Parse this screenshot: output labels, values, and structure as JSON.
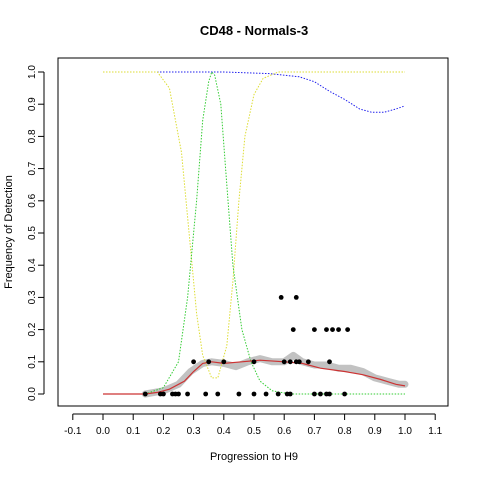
{
  "chart_data": {
    "type": "scatter",
    "title": "CD48 - Normals-3",
    "xlabel": "Progression to H9",
    "ylabel": "Frequency of Detection",
    "xlim": [
      -0.1,
      1.1
    ],
    "ylim": [
      0,
      1.0
    ],
    "x_ticks": [
      "-0.1",
      "0.0",
      "0.1",
      "0.2",
      "0.3",
      "0.4",
      "0.5",
      "0.6",
      "0.7",
      "0.8",
      "0.9",
      "1.0",
      "1.1"
    ],
    "y_ticks": [
      "0.0",
      "0.1",
      "0.2",
      "0.3",
      "0.4",
      "0.5",
      "0.6",
      "0.7",
      "0.8",
      "0.9",
      "1.0"
    ],
    "grid": false,
    "legend": "none",
    "series": [
      {
        "kind": "points",
        "color": "#000000",
        "points": [
          [
            0.14,
            0.0
          ],
          [
            0.19,
            0.0
          ],
          [
            0.2,
            0.0
          ],
          [
            0.23,
            0.0
          ],
          [
            0.24,
            0.0
          ],
          [
            0.25,
            0.0
          ],
          [
            0.28,
            0.0
          ],
          [
            0.34,
            0.0
          ],
          [
            0.38,
            0.0
          ],
          [
            0.45,
            0.0
          ],
          [
            0.5,
            0.0
          ],
          [
            0.54,
            0.0
          ],
          [
            0.58,
            0.0
          ],
          [
            0.61,
            0.0
          ],
          [
            0.62,
            0.0
          ],
          [
            0.7,
            0.0
          ],
          [
            0.72,
            0.0
          ],
          [
            0.74,
            0.0
          ],
          [
            0.75,
            0.0
          ],
          [
            0.8,
            0.0
          ],
          [
            0.3,
            0.1
          ],
          [
            0.35,
            0.1
          ],
          [
            0.4,
            0.1
          ],
          [
            0.5,
            0.1
          ],
          [
            0.6,
            0.1
          ],
          [
            0.62,
            0.1
          ],
          [
            0.64,
            0.1
          ],
          [
            0.65,
            0.1
          ],
          [
            0.68,
            0.1
          ],
          [
            0.75,
            0.1
          ],
          [
            0.63,
            0.2
          ],
          [
            0.7,
            0.2
          ],
          [
            0.74,
            0.2
          ],
          [
            0.76,
            0.2
          ],
          [
            0.78,
            0.2
          ],
          [
            0.81,
            0.2
          ],
          [
            0.59,
            0.3
          ],
          [
            0.64,
            0.3
          ]
        ]
      },
      {
        "kind": "line",
        "color": "#cc3333",
        "points": [
          [
            0.0,
            0.0
          ],
          [
            0.14,
            0.0
          ],
          [
            0.18,
            0.005
          ],
          [
            0.22,
            0.015
          ],
          [
            0.27,
            0.04
          ],
          [
            0.3,
            0.07
          ],
          [
            0.33,
            0.095
          ],
          [
            0.36,
            0.1
          ],
          [
            0.4,
            0.095
          ],
          [
            0.46,
            0.1
          ],
          [
            0.52,
            0.105
          ],
          [
            0.6,
            0.1
          ],
          [
            0.66,
            0.095
          ],
          [
            0.72,
            0.08
          ],
          [
            0.8,
            0.07
          ],
          [
            0.86,
            0.06
          ],
          [
            0.92,
            0.045
          ],
          [
            0.97,
            0.03
          ],
          [
            1.0,
            0.025
          ]
        ]
      },
      {
        "kind": "band",
        "color": "#bbbbbb",
        "points": [
          [
            0.14,
            0.0
          ],
          [
            0.2,
            0.01
          ],
          [
            0.25,
            0.03
          ],
          [
            0.29,
            0.07
          ],
          [
            0.33,
            0.095
          ],
          [
            0.36,
            0.1
          ],
          [
            0.4,
            0.095
          ],
          [
            0.44,
            0.085
          ],
          [
            0.48,
            0.1
          ],
          [
            0.52,
            0.11
          ],
          [
            0.56,
            0.1
          ],
          [
            0.6,
            0.1
          ],
          [
            0.63,
            0.12
          ],
          [
            0.66,
            0.1
          ],
          [
            0.7,
            0.09
          ],
          [
            0.74,
            0.09
          ],
          [
            0.78,
            0.08
          ],
          [
            0.82,
            0.08
          ],
          [
            0.86,
            0.07
          ],
          [
            0.9,
            0.05
          ],
          [
            0.94,
            0.04
          ],
          [
            0.98,
            0.03
          ],
          [
            1.0,
            0.03
          ]
        ]
      },
      {
        "kind": "curve",
        "color": "#2222ee",
        "dash": "dotted",
        "points": [
          [
            0.0,
            1.0
          ],
          [
            0.2,
            1.0
          ],
          [
            0.4,
            1.0
          ],
          [
            0.55,
            0.995
          ],
          [
            0.65,
            0.985
          ],
          [
            0.7,
            0.97
          ],
          [
            0.75,
            0.94
          ],
          [
            0.8,
            0.915
          ],
          [
            0.85,
            0.885
          ],
          [
            0.89,
            0.875
          ],
          [
            0.93,
            0.875
          ],
          [
            0.97,
            0.885
          ],
          [
            1.0,
            0.895
          ]
        ]
      },
      {
        "kind": "curve",
        "color": "#dddd33",
        "dash": "dotted",
        "points": [
          [
            0.0,
            1.0
          ],
          [
            0.18,
            1.0
          ],
          [
            0.22,
            0.95
          ],
          [
            0.26,
            0.75
          ],
          [
            0.29,
            0.45
          ],
          [
            0.31,
            0.25
          ],
          [
            0.33,
            0.12
          ],
          [
            0.36,
            0.05
          ],
          [
            0.38,
            0.05
          ],
          [
            0.41,
            0.15
          ],
          [
            0.43,
            0.35
          ],
          [
            0.45,
            0.6
          ],
          [
            0.47,
            0.8
          ],
          [
            0.5,
            0.93
          ],
          [
            0.53,
            0.98
          ],
          [
            0.58,
            1.0
          ],
          [
            1.0,
            1.0
          ]
        ]
      },
      {
        "kind": "curve",
        "color": "#33cc33",
        "dash": "dotted",
        "points": [
          [
            0.0,
            0.0
          ],
          [
            0.14,
            0.0
          ],
          [
            0.2,
            0.02
          ],
          [
            0.25,
            0.1
          ],
          [
            0.28,
            0.3
          ],
          [
            0.31,
            0.6
          ],
          [
            0.33,
            0.85
          ],
          [
            0.35,
            0.97
          ],
          [
            0.36,
            1.0
          ],
          [
            0.37,
            0.99
          ],
          [
            0.39,
            0.9
          ],
          [
            0.41,
            0.65
          ],
          [
            0.43,
            0.4
          ],
          [
            0.46,
            0.2
          ],
          [
            0.49,
            0.1
          ],
          [
            0.52,
            0.04
          ],
          [
            0.56,
            0.01
          ],
          [
            0.62,
            0.0
          ],
          [
            1.0,
            0.0
          ]
        ]
      }
    ]
  }
}
